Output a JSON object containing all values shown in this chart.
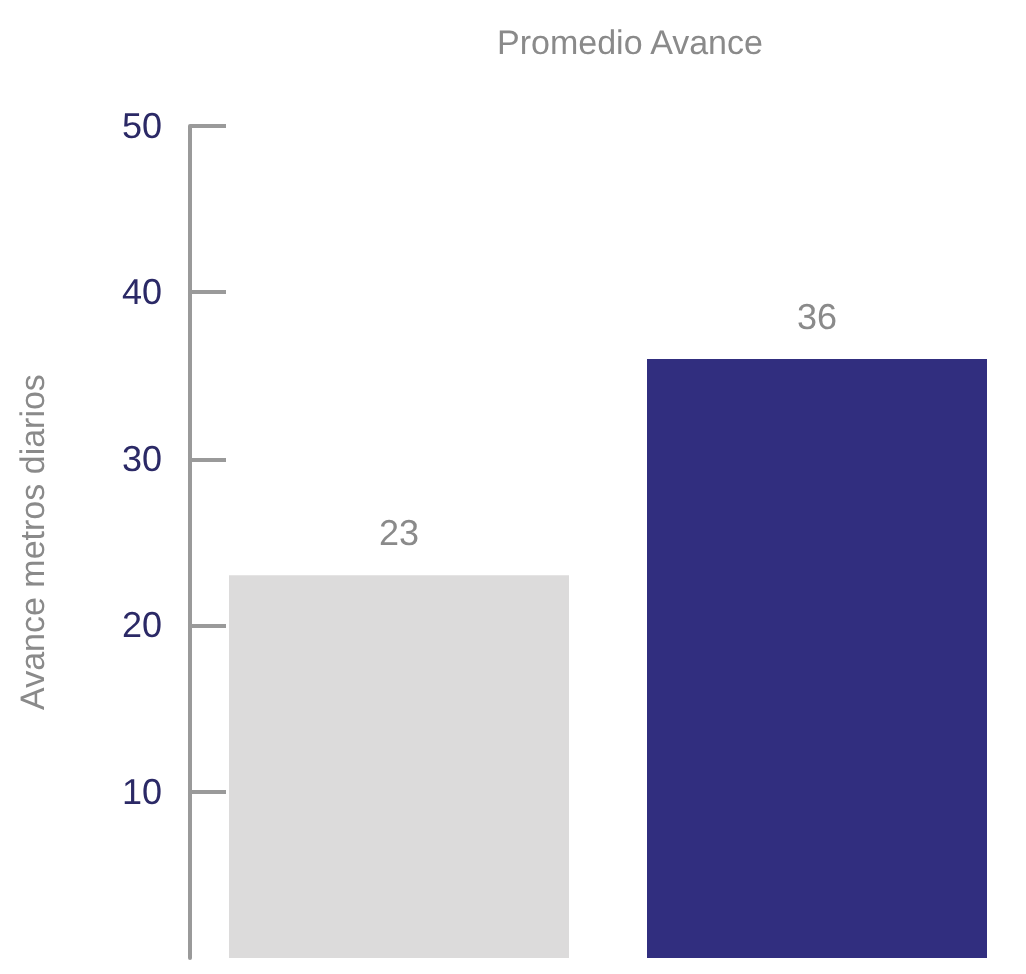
{
  "chart_data": {
    "type": "bar",
    "title": "Promedio Avance",
    "ylabel": "Avance metros diarios",
    "categories": [
      null,
      null
    ],
    "series": [
      {
        "colors": [
          "#dcdbdb",
          "#312e7f"
        ],
        "values": [
          23,
          36
        ]
      }
    ],
    "ylim": [
      0,
      50
    ],
    "yticks": [
      10,
      20,
      30,
      40,
      50
    ],
    "data_labels": true,
    "grid": false
  }
}
